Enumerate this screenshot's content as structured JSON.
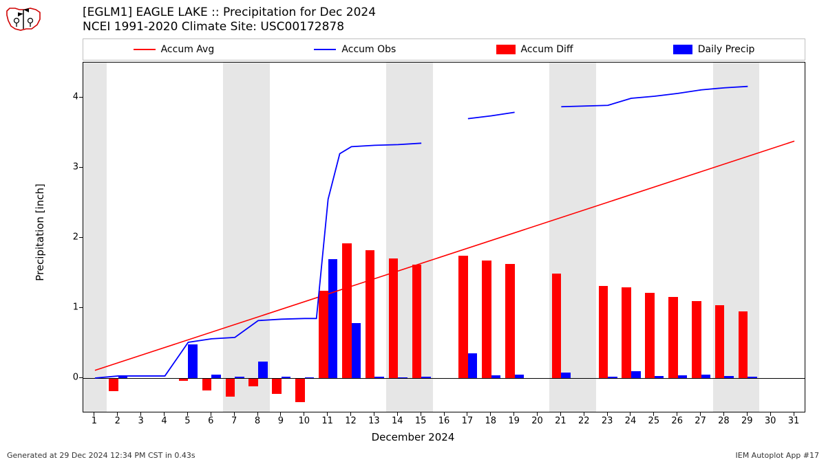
{
  "title_line1": "[EGLM1] EAGLE LAKE :: Precipitation for Dec 2024",
  "title_line2": "NCEI 1991-2020 Climate Site: USC00172878",
  "ylabel": "Precipitation [inch]",
  "xlabel": "December 2024",
  "footer_left": "Generated at 29 Dec 2024 12:34 PM CST in 0.43s",
  "footer_right": "IEM Autoplot App #17",
  "legend": [
    {
      "label": "Accum Avg",
      "type": "line",
      "color": "#ff0000"
    },
    {
      "label": "Accum Obs",
      "type": "line",
      "color": "#0000ff"
    },
    {
      "label": "Accum Diff",
      "type": "swatch",
      "color": "#ff0000"
    },
    {
      "label": "Daily Precip",
      "type": "swatch",
      "color": "#0000ff"
    }
  ],
  "chart": {
    "type": "mixed-bar-line",
    "background_color": "#ffffff",
    "weekend_band_color": "#e6e6e6",
    "axis_color": "#000000",
    "xlim": [
      0.5,
      31.5
    ],
    "ylim": [
      -0.5,
      4.5
    ],
    "yticks": [
      0,
      1,
      2,
      3,
      4
    ],
    "xticks": [
      1,
      2,
      3,
      4,
      5,
      6,
      7,
      8,
      9,
      10,
      11,
      12,
      13,
      14,
      15,
      16,
      17,
      18,
      19,
      20,
      21,
      22,
      23,
      24,
      25,
      26,
      27,
      28,
      29,
      30,
      31
    ],
    "weekend_days": [
      1,
      7,
      8,
      14,
      15,
      21,
      22,
      28,
      29
    ],
    "bar_width": 0.4,
    "bar_series": {
      "accum_diff": {
        "color": "#ff0000",
        "offset": -0.2,
        "data": {
          "2": -0.19,
          "5": -0.04,
          "6": -0.18,
          "7": -0.26,
          "8": -0.12,
          "9": -0.23,
          "10": -0.34,
          "11": 1.25,
          "12": 1.92,
          "13": 1.82,
          "14": 1.71,
          "15": 1.62,
          "17": 1.75,
          "18": 1.68,
          "19": 1.63,
          "21": 1.49,
          "23": 1.31,
          "24": 1.29,
          "25": 1.22,
          "26": 1.16,
          "27": 1.1,
          "28": 1.04,
          "29": 0.95
        }
      },
      "daily_precip": {
        "color": "#0000ff",
        "offset": 0.2,
        "data": {
          "2": 0.03,
          "5": 0.48,
          "6": 0.05,
          "7": 0.02,
          "8": 0.24,
          "9": 0.02,
          "10": 0.01,
          "11": 1.7,
          "12": 0.78,
          "13": 0.02,
          "14": 0.01,
          "15": 0.02,
          "17": 0.35,
          "18": 0.04,
          "19": 0.05,
          "21": 0.08,
          "23": 0.02,
          "24": 0.1,
          "25": 0.03,
          "26": 0.04,
          "27": 0.05,
          "28": 0.03,
          "29": 0.02
        }
      }
    },
    "line_series": {
      "accum_avg": {
        "color": "#ff0000",
        "width": 1.6,
        "points": [
          [
            1,
            0.11
          ],
          [
            31,
            3.38
          ]
        ]
      },
      "accum_obs": {
        "color": "#0000ff",
        "width": 1.8,
        "segments": [
          [
            [
              1,
              0.0
            ],
            [
              2,
              0.03
            ],
            [
              3,
              0.03
            ],
            [
              4,
              0.03
            ],
            [
              5,
              0.51
            ],
            [
              6,
              0.56
            ],
            [
              7,
              0.58
            ],
            [
              8,
              0.82
            ],
            [
              9,
              0.84
            ],
            [
              10,
              0.85
            ],
            [
              10.5,
              0.85
            ],
            [
              11,
              2.55
            ],
            [
              11.5,
              3.2
            ],
            [
              12,
              3.3
            ],
            [
              13,
              3.32
            ],
            [
              14,
              3.33
            ],
            [
              15,
              3.35
            ]
          ],
          [
            [
              17,
              3.7
            ],
            [
              18,
              3.74
            ],
            [
              19,
              3.79
            ]
          ],
          [
            [
              21,
              3.87
            ],
            [
              23,
              3.89
            ],
            [
              24,
              3.99
            ],
            [
              25,
              4.02
            ],
            [
              26,
              4.06
            ],
            [
              27,
              4.11
            ],
            [
              28,
              4.14
            ],
            [
              29,
              4.16
            ]
          ]
        ]
      }
    },
    "logo": {
      "outline_color": "#d00000",
      "vane_color": "#000000"
    }
  }
}
